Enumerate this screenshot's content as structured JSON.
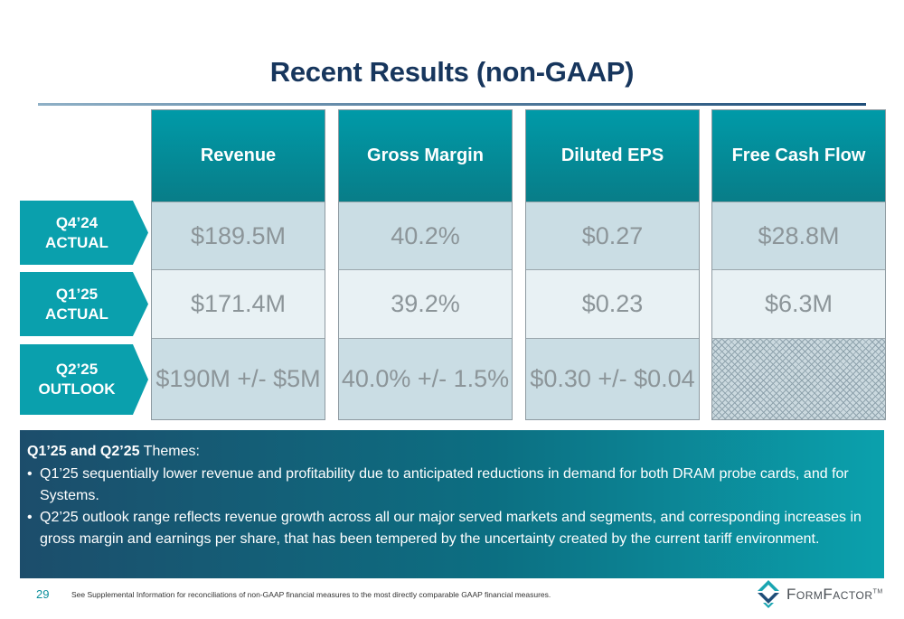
{
  "title": "Recent Results (non-GAAP)",
  "columns": [
    {
      "header": "Revenue",
      "values": [
        "$189.5M",
        "$171.4M",
        "$190M +/- $5M"
      ]
    },
    {
      "header": "Gross Margin",
      "values": [
        "40.2%",
        "39.2%",
        "40.0% +/- 1.5%"
      ]
    },
    {
      "header": "Diluted EPS",
      "values": [
        "$0.27",
        "$0.23",
        "$0.30 +/- $0.04"
      ]
    },
    {
      "header": "Free Cash Flow",
      "values": [
        "$28.8M",
        "$6.3M",
        ""
      ]
    }
  ],
  "rows": [
    {
      "line1": "Q4’24",
      "line2": "ACTUAL"
    },
    {
      "line1": "Q1’25",
      "line2": "ACTUAL"
    },
    {
      "line1": "Q2’25",
      "line2": "OUTLOOK"
    }
  ],
  "themes": {
    "heading_bold": "Q1’25 and Q2’25",
    "heading_rest": " Themes:",
    "bullet_char": "•",
    "bullets": [
      "Q1’25 sequentially lower revenue and profitability due to anticipated reductions in demand for both DRAM probe cards, and for Systems.",
      "Q2’25 outlook range reflects revenue growth across all our major served markets and segments, and corresponding increases in gross margin and earnings per share, that has been tempered by the uncertainty created by the current tariff environment."
    ]
  },
  "footer": {
    "page_number": "29",
    "footnote": "See Supplemental Information for reconciliations of non-GAAP financial measures to the most directly comparable GAAP financial measures.",
    "logo_text": "FormFactor",
    "logo_tm": "TM",
    "logo_icon": "formfactor-logo-icon"
  },
  "colors": {
    "title": "#17365d",
    "header_teal": "#009aa8",
    "row_label_teal": "#0aa0ad",
    "cell_dark": "#cadde4",
    "cell_light": "#e8f1f4",
    "value_text": "#8c9599",
    "themes_dark": "#1c4d6b",
    "themes_light": "#0ba1ad"
  }
}
